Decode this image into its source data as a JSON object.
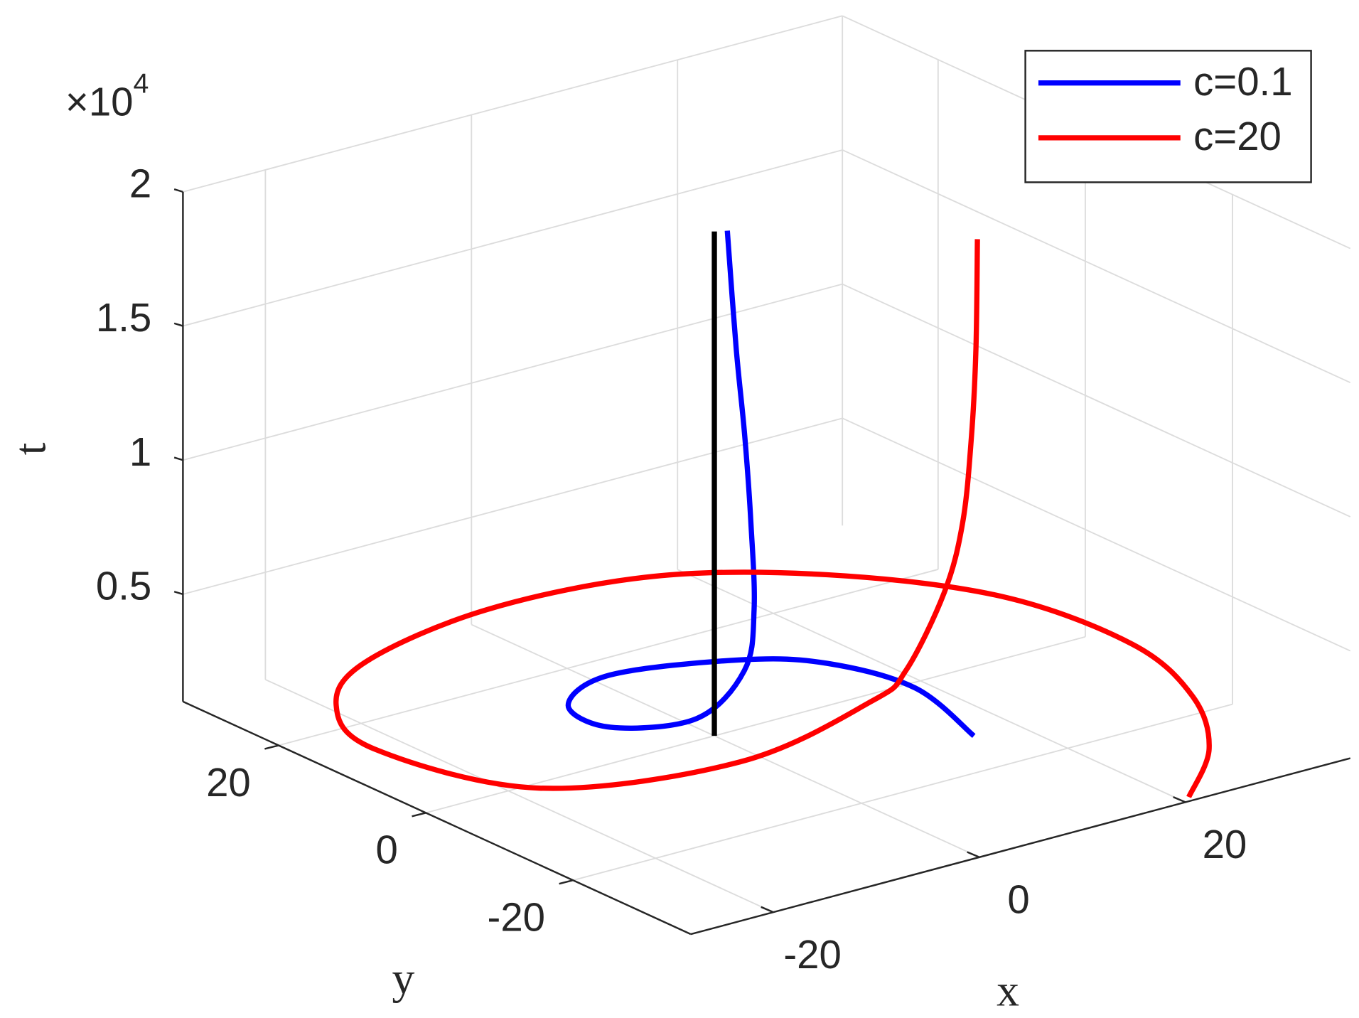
{
  "chart_data": {
    "type": "line3d",
    "xlabel": "x",
    "ylabel": "y",
    "zlabel": "t",
    "zexponent": {
      "base": "×10",
      "power": "4"
    },
    "xlim": [
      -28,
      36
    ],
    "ylim": [
      -36,
      33
    ],
    "zlim": [
      1000,
      20000
    ],
    "xticks": [
      -20,
      0,
      20
    ],
    "yticks": [
      -20,
      0,
      20
    ],
    "zticks": [
      {
        "value": 5000,
        "label": "0.5"
      },
      {
        "value": 10000,
        "label": "1"
      },
      {
        "value": 15000,
        "label": "1.5"
      },
      {
        "value": 20000,
        "label": "2"
      }
    ],
    "grid": true,
    "legend": "northeast",
    "series": [
      {
        "name": "c=0.1",
        "color": "#0000ff",
        "x": [
          15.9,
          18.0,
          15.2,
          10.0,
          -0.4,
          -7.4,
          -8.1,
          -2.0,
          5.2,
          5.0,
          3.9,
          3.3,
          1.9,
          0.9
        ],
        "y": [
          -13.0,
          -2.1,
          5.9,
          10.4,
          13.6,
          9.5,
          2.8,
          -0.4,
          3.2,
          1.6,
          0.5,
          0.5,
          -0.3,
          -0.5
        ],
        "z": [
          1000,
          1200,
          1400,
          1500,
          1600,
          1700,
          1800,
          1900,
          2500,
          5000,
          8500,
          11800,
          15300,
          19800
        ]
      },
      {
        "name": "c=20",
        "color": "#ff0000",
        "x": [
          20.9,
          26.8,
          31.0,
          34.3,
          32.7,
          24.9,
          14.0,
          -0.6,
          -15.0,
          -22.7,
          -26.2,
          -21.3,
          -5.5,
          10.0,
          13.3,
          15.4,
          15.1,
          15.1,
          15.1,
          15.1
        ],
        "y": [
          -35.2,
          -29.7,
          -21.6,
          -8.8,
          6.7,
          19.5,
          27.9,
          30.0,
          26.3,
          19.6,
          9.5,
          -6.1,
          -11.2,
          -7.4,
          -7.4,
          -9.7,
          -12.6,
          -13.8,
          -14.4,
          -14.6
        ],
        "z": [
          1000,
          1500,
          2000,
          2000,
          2000,
          2000,
          2000,
          2000,
          2000,
          2000,
          2000,
          2000,
          2000,
          2200,
          3000,
          6000,
          8990,
          12380,
          15700,
          19800
        ]
      },
      {
        "color": "#000000",
        "x": [
          0,
          0
        ],
        "y": [
          0,
          0
        ],
        "z": [
          1000,
          19800
        ]
      }
    ]
  }
}
